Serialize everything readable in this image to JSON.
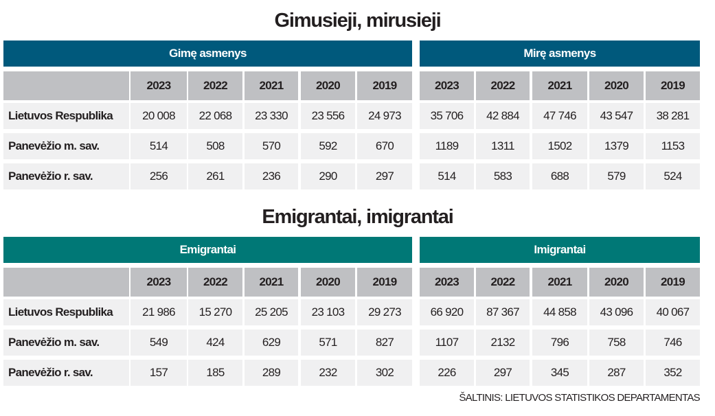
{
  "colors": {
    "births_header": "#00597c",
    "migration_header": "#007876"
  },
  "sections": [
    {
      "title": "Gimusieji, mirusieji",
      "groups": [
        {
          "label": "Gimę asmenys",
          "years": [
            "2023",
            "2022",
            "2021",
            "2020",
            "2019"
          ]
        },
        {
          "label": "Mirę asmenys",
          "years": [
            "2023",
            "2022",
            "2021",
            "2020",
            "2019"
          ]
        }
      ],
      "rows": [
        {
          "label": "Lietuvos Respublika",
          "values": [
            [
              "20 008",
              "22 068",
              "23 330",
              "23 556",
              "24 973"
            ],
            [
              "35 706",
              "42 884",
              "47 746",
              "43 547",
              "38 281"
            ]
          ]
        },
        {
          "label": "Panevėžio m. sav.",
          "values": [
            [
              "514",
              "508",
              "570",
              "592",
              "670"
            ],
            [
              "1189",
              "1311",
              "1502",
              "1379",
              "1153"
            ]
          ]
        },
        {
          "label": "Panevėžio r. sav.",
          "values": [
            [
              "256",
              "261",
              "236",
              "290",
              "297"
            ],
            [
              "514",
              "583",
              "688",
              "579",
              "524"
            ]
          ]
        }
      ]
    },
    {
      "title": "Emigrantai, imigrantai",
      "groups": [
        {
          "label": "Emigrantai",
          "years": [
            "2023",
            "2022",
            "2021",
            "2020",
            "2019"
          ]
        },
        {
          "label": "Imigrantai",
          "years": [
            "2023",
            "2022",
            "2021",
            "2020",
            "2019"
          ]
        }
      ],
      "rows": [
        {
          "label": "Lietuvos Respublika",
          "values": [
            [
              "21 986",
              "15 270",
              "25 205",
              "23 103",
              "29 273"
            ],
            [
              "66 920",
              "87 367",
              "44 858",
              "43 096",
              "40 067"
            ]
          ]
        },
        {
          "label": "Panevėžio m. sav.",
          "values": [
            [
              "549",
              "424",
              "629",
              "571",
              "827"
            ],
            [
              "1107",
              "2132",
              "796",
              "758",
              "746"
            ]
          ]
        },
        {
          "label": "Panevėžio r. sav.",
          "values": [
            [
              "157",
              "185",
              "289",
              "232",
              "302"
            ],
            [
              "226",
              "297",
              "345",
              "287",
              "352"
            ]
          ]
        }
      ]
    }
  ],
  "source": "ŠALTINIS: LIETUVOS STATISTIKOS DEPARTAMENTAS"
}
